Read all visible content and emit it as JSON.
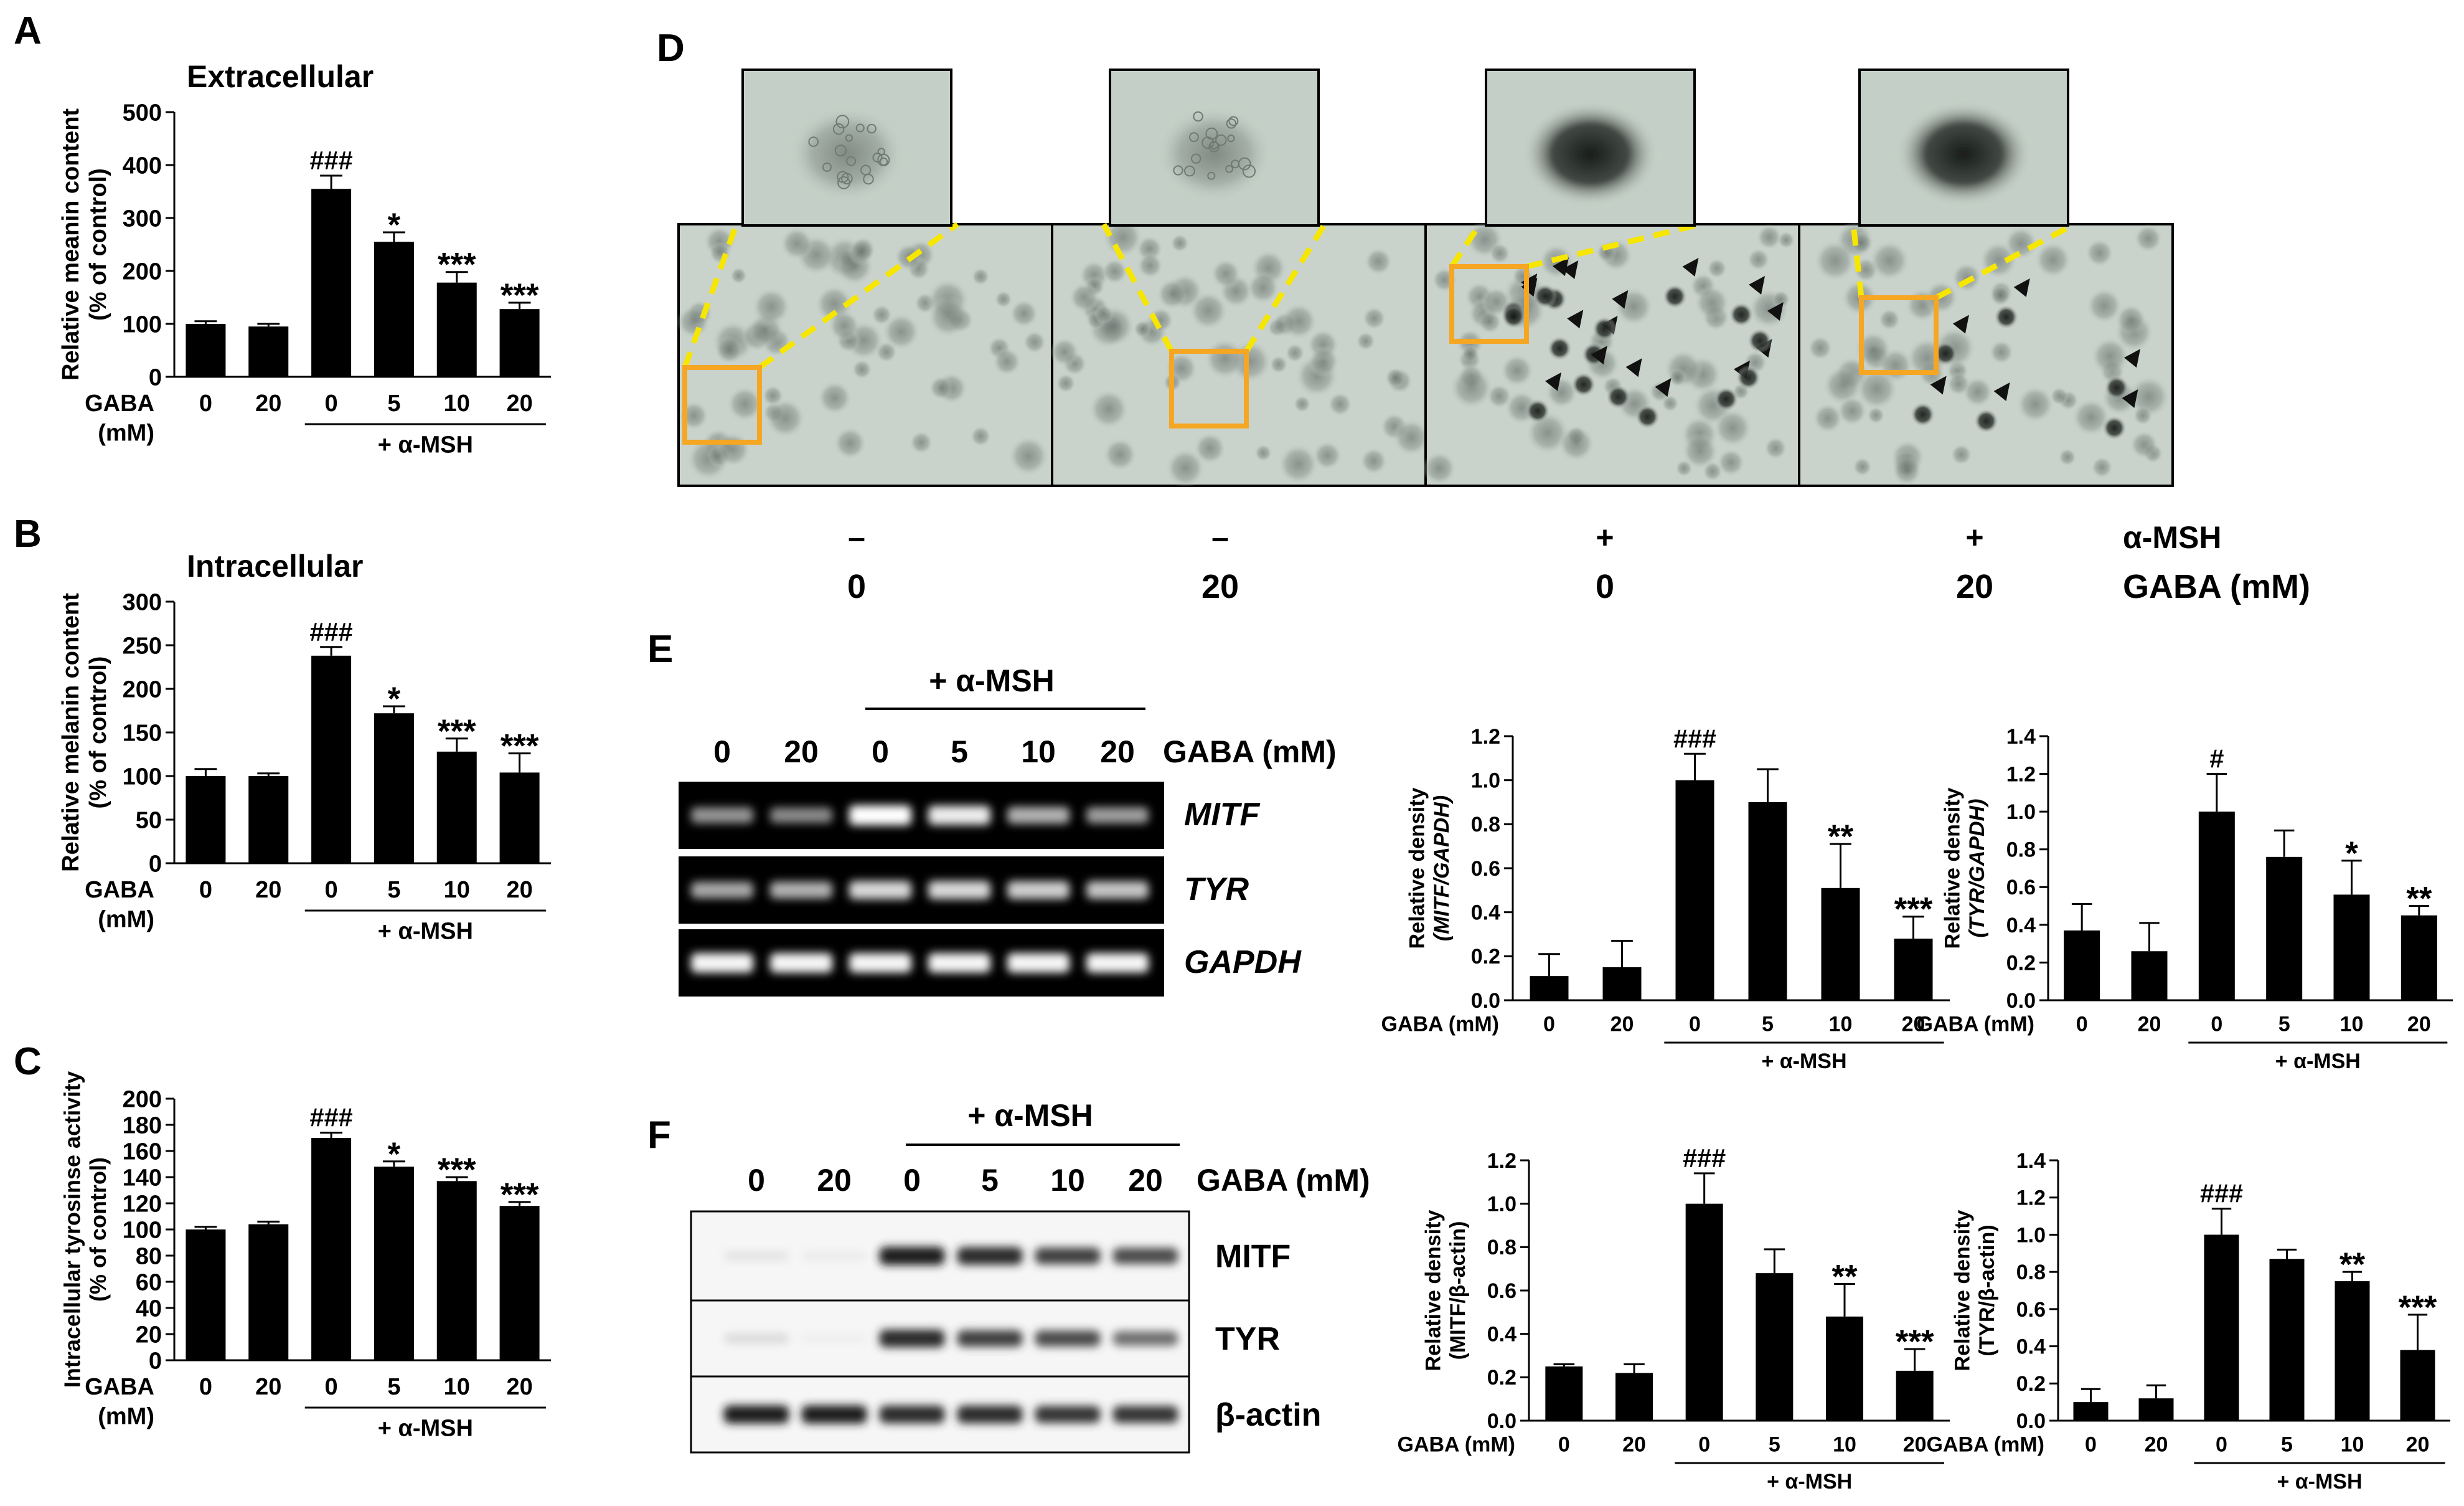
{
  "figure": {
    "panels": {
      "A": {
        "letter": "A"
      },
      "B": {
        "letter": "B"
      },
      "C": {
        "letter": "C"
      },
      "D": {
        "letter": "D"
      },
      "E": {
        "letter": "E"
      },
      "F": {
        "letter": "F"
      }
    },
    "gaba_label": "GABA",
    "gaba_mm_label": "GABA (mM)",
    "mm_label": "(mM)",
    "msh_label": "+ α-MSH",
    "significance_symbols": [
      "###",
      "#",
      "*",
      "**",
      "***"
    ]
  },
  "chart_data": [
    {
      "id": "A",
      "type": "bar",
      "title": "Extracellular",
      "ylabel": "Relative meanin content (% of control)",
      "xlabel": "GABA (mM)",
      "categories": [
        "0",
        "20",
        "0",
        "5",
        "10",
        "20"
      ],
      "values": [
        100,
        95,
        355,
        255,
        178,
        128
      ],
      "errors": [
        5,
        5,
        25,
        18,
        20,
        12
      ],
      "annotations": [
        "",
        "",
        "###",
        "*",
        "***",
        "***"
      ],
      "ylim": [
        0,
        500
      ],
      "yticks": [
        0,
        100,
        200,
        300,
        400,
        500
      ],
      "group_label": "+ α-MSH",
      "group_indices": [
        2,
        5
      ],
      "bar_color": "#000000",
      "grid": false
    },
    {
      "id": "B",
      "type": "bar",
      "title": "Intracellular",
      "ylabel": "Relative melanin content (% of control)",
      "xlabel": "GABA (mM)",
      "categories": [
        "0",
        "20",
        "0",
        "5",
        "10",
        "20"
      ],
      "values": [
        100,
        100,
        238,
        172,
        128,
        104
      ],
      "errors": [
        8,
        3,
        10,
        8,
        15,
        22
      ],
      "annotations": [
        "",
        "",
        "###",
        "*",
        "***",
        "***"
      ],
      "ylim": [
        0,
        300
      ],
      "yticks": [
        0,
        50,
        100,
        150,
        200,
        250,
        300
      ],
      "group_label": "+ α-MSH",
      "group_indices": [
        2,
        5
      ],
      "bar_color": "#000000",
      "grid": false
    },
    {
      "id": "C",
      "type": "bar",
      "title": "",
      "ylabel": "Intracellular tyrosinse activity (% of control)",
      "xlabel": "GABA (mM)",
      "categories": [
        "0",
        "20",
        "0",
        "5",
        "10",
        "20"
      ],
      "values": [
        100,
        104,
        170,
        148,
        137,
        118
      ],
      "errors": [
        2,
        2,
        4,
        4,
        3,
        3
      ],
      "annotations": [
        "",
        "",
        "###",
        "*",
        "***",
        "***"
      ],
      "ylim": [
        0,
        200
      ],
      "yticks": [
        0,
        20,
        40,
        60,
        80,
        100,
        120,
        140,
        160,
        180,
        200
      ],
      "group_label": "+ α-MSH",
      "group_indices": [
        2,
        5
      ],
      "bar_color": "#000000",
      "grid": false
    },
    {
      "id": "E1",
      "type": "bar",
      "title": "",
      "ylabel": "Relative density (MITF/GAPDH)",
      "xlabel": "GABA (mM)",
      "categories": [
        "0",
        "20",
        "0",
        "5",
        "10",
        "20"
      ],
      "values": [
        0.11,
        0.15,
        1.0,
        0.9,
        0.51,
        0.28
      ],
      "errors": [
        0.1,
        0.12,
        0.12,
        0.15,
        0.2,
        0.1
      ],
      "annotations": [
        "",
        "",
        "###",
        "",
        "**",
        "***"
      ],
      "ylim": [
        0,
        1.2
      ],
      "yticks": [
        0.0,
        0.2,
        0.4,
        0.6,
        0.8,
        1.0,
        1.2
      ],
      "group_label": "+ α-MSH",
      "group_indices": [
        2,
        5
      ],
      "bar_color": "#000000",
      "grid": false
    },
    {
      "id": "E2",
      "type": "bar",
      "title": "",
      "ylabel": "Relative density (TYR/GAPDH)",
      "xlabel": "GABA (mM)",
      "categories": [
        "0",
        "20",
        "0",
        "5",
        "10",
        "20"
      ],
      "values": [
        0.37,
        0.26,
        1.0,
        0.76,
        0.56,
        0.45
      ],
      "errors": [
        0.14,
        0.15,
        0.2,
        0.14,
        0.18,
        0.05
      ],
      "annotations": [
        "",
        "",
        "#",
        "",
        "*",
        "**"
      ],
      "ylim": [
        0,
        1.4
      ],
      "yticks": [
        0.0,
        0.2,
        0.4,
        0.6,
        0.8,
        1.0,
        1.2,
        1.4
      ],
      "group_label": "+ α-MSH",
      "group_indices": [
        2,
        5
      ],
      "bar_color": "#000000",
      "grid": false
    },
    {
      "id": "F1",
      "type": "bar",
      "title": "",
      "ylabel": "Relative density (MITF/β-actin)",
      "xlabel": "GABA (mM)",
      "categories": [
        "0",
        "20",
        "0",
        "5",
        "10",
        "20"
      ],
      "values": [
        0.25,
        0.22,
        1.0,
        0.68,
        0.48,
        0.23
      ],
      "errors": [
        0.01,
        0.04,
        0.14,
        0.11,
        0.15,
        0.1
      ],
      "annotations": [
        "",
        "",
        "###",
        "",
        "**",
        "***"
      ],
      "ylim": [
        0,
        1.2
      ],
      "yticks": [
        0.0,
        0.2,
        0.4,
        0.6,
        0.8,
        1.0,
        1.2
      ],
      "group_label": "+ α-MSH",
      "group_indices": [
        2,
        5
      ],
      "bar_color": "#000000",
      "grid": false
    },
    {
      "id": "F2",
      "type": "bar",
      "title": "",
      "ylabel": "Relative density (TYR/β-actin)",
      "xlabel": "GABA (mM)",
      "categories": [
        "0",
        "20",
        "0",
        "5",
        "10",
        "20"
      ],
      "values": [
        0.1,
        0.12,
        1.0,
        0.87,
        0.75,
        0.38
      ],
      "errors": [
        0.07,
        0.07,
        0.14,
        0.05,
        0.05,
        0.19
      ],
      "annotations": [
        "",
        "",
        "###",
        "",
        "**",
        "***"
      ],
      "ylim": [
        0,
        1.4
      ],
      "yticks": [
        0.0,
        0.2,
        0.4,
        0.6,
        0.8,
        1.0,
        1.2,
        1.4
      ],
      "group_label": "+ α-MSH",
      "group_indices": [
        2,
        5
      ],
      "bar_color": "#000000",
      "grid": false
    }
  ],
  "panel_d": {
    "msh_row_label": "α-MSH",
    "gaba_row_label": "GABA (mM)",
    "columns": [
      {
        "msh": "–",
        "gaba": "0"
      },
      {
        "msh": "–",
        "gaba": "20"
      },
      {
        "msh": "+",
        "gaba": "0"
      },
      {
        "msh": "+",
        "gaba": "20"
      }
    ],
    "colors": {
      "highlight_box": "#f5a623",
      "zoom_line": "#f7e600",
      "micrograph": "#c9d3cc"
    }
  },
  "gel_e": {
    "header": "+ α-MSH",
    "lanes": [
      "0",
      "20",
      "0",
      "5",
      "10",
      "20"
    ],
    "gaba_label": "GABA (mM)",
    "rows": [
      {
        "label": "MITF",
        "intensity": [
          0.45,
          0.4,
          1.0,
          0.9,
          0.6,
          0.5
        ]
      },
      {
        "label": "TYR",
        "intensity": [
          0.55,
          0.6,
          0.8,
          0.8,
          0.75,
          0.7
        ]
      },
      {
        "label": "GAPDH",
        "intensity": [
          0.95,
          0.95,
          0.95,
          0.95,
          0.95,
          0.95
        ]
      }
    ]
  },
  "blot_f": {
    "header": "+ α-MSH",
    "lanes": [
      "0",
      "20",
      "0",
      "5",
      "10",
      "20"
    ],
    "gaba_label": "GABA (mM)",
    "rows": [
      {
        "label": "MITF",
        "intensity": [
          0.08,
          0.05,
          0.95,
          0.9,
          0.8,
          0.75
        ]
      },
      {
        "label": "TYR",
        "intensity": [
          0.12,
          0.03,
          0.9,
          0.8,
          0.75,
          0.6
        ]
      },
      {
        "label": "β-actin",
        "intensity": [
          0.95,
          0.95,
          0.9,
          0.9,
          0.85,
          0.85
        ]
      }
    ]
  }
}
